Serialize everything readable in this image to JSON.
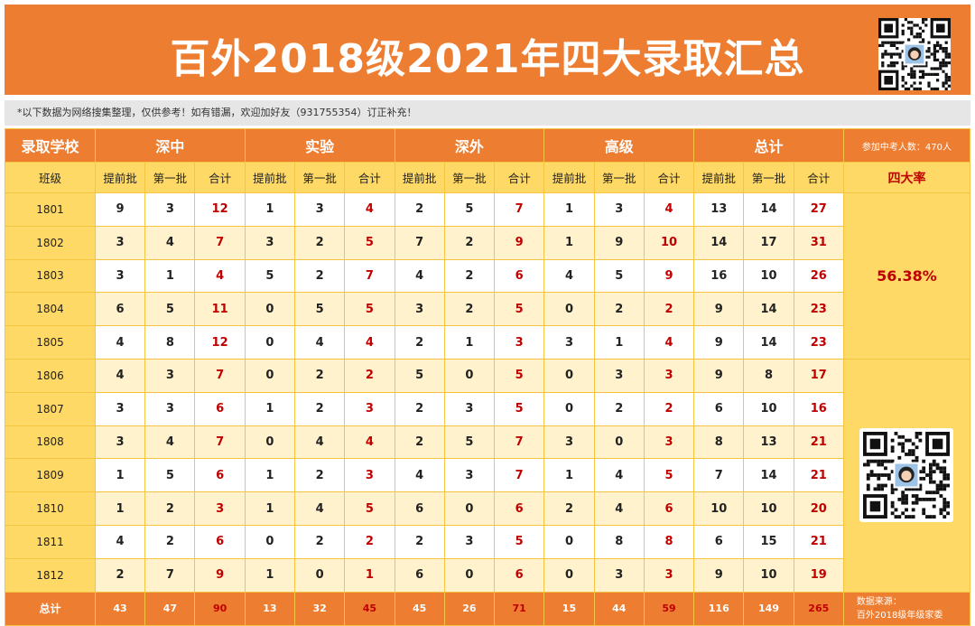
{
  "header": {
    "title": "百外2018级2021年四大录取汇总"
  },
  "notice": "*以下数据为网络搜集整理，仅供参考！如有错漏，欢迎加好友（931755354）订正补充！",
  "table": {
    "corner_label": "录取学校",
    "schools": [
      "深中",
      "实验",
      "深外",
      "高级",
      "总计"
    ],
    "participants": "参加中考人数：470人",
    "class_label": "班级",
    "sub_headers": [
      "提前批",
      "第一批",
      "合计"
    ],
    "rate_label": "四大率",
    "rate_value": "56.38%",
    "rows": [
      {
        "class": "1801",
        "values": [
          "9",
          "3",
          "12",
          "1",
          "3",
          "4",
          "2",
          "5",
          "7",
          "1",
          "3",
          "4",
          "13",
          "14",
          "27"
        ]
      },
      {
        "class": "1802",
        "values": [
          "3",
          "4",
          "7",
          "3",
          "2",
          "5",
          "7",
          "2",
          "9",
          "1",
          "9",
          "10",
          "14",
          "17",
          "31"
        ]
      },
      {
        "class": "1803",
        "values": [
          "3",
          "1",
          "4",
          "5",
          "2",
          "7",
          "4",
          "2",
          "6",
          "4",
          "5",
          "9",
          "16",
          "10",
          "26"
        ]
      },
      {
        "class": "1804",
        "values": [
          "6",
          "5",
          "11",
          "0",
          "5",
          "5",
          "3",
          "2",
          "5",
          "0",
          "2",
          "2",
          "9",
          "14",
          "23"
        ]
      },
      {
        "class": "1805",
        "values": [
          "4",
          "8",
          "12",
          "0",
          "4",
          "4",
          "2",
          "1",
          "3",
          "3",
          "1",
          "4",
          "9",
          "14",
          "23"
        ]
      },
      {
        "class": "1806",
        "values": [
          "4",
          "3",
          "7",
          "0",
          "2",
          "2",
          "5",
          "0",
          "5",
          "0",
          "3",
          "3",
          "9",
          "8",
          "17"
        ]
      },
      {
        "class": "1807",
        "values": [
          "3",
          "3",
          "6",
          "1",
          "2",
          "3",
          "2",
          "3",
          "5",
          "0",
          "2",
          "2",
          "6",
          "10",
          "16"
        ]
      },
      {
        "class": "1808",
        "values": [
          "3",
          "4",
          "7",
          "0",
          "4",
          "4",
          "2",
          "5",
          "7",
          "3",
          "0",
          "3",
          "8",
          "13",
          "21"
        ]
      },
      {
        "class": "1809",
        "values": [
          "1",
          "5",
          "6",
          "1",
          "2",
          "3",
          "4",
          "3",
          "7",
          "1",
          "4",
          "5",
          "7",
          "14",
          "21"
        ]
      },
      {
        "class": "1810",
        "values": [
          "1",
          "2",
          "3",
          "1",
          "4",
          "5",
          "6",
          "0",
          "6",
          "2",
          "4",
          "6",
          "10",
          "10",
          "20"
        ]
      },
      {
        "class": "1811",
        "values": [
          "4",
          "2",
          "6",
          "0",
          "2",
          "2",
          "2",
          "3",
          "5",
          "0",
          "8",
          "8",
          "6",
          "15",
          "21"
        ]
      },
      {
        "class": "1812",
        "values": [
          "2",
          "7",
          "9",
          "1",
          "0",
          "1",
          "6",
          "0",
          "6",
          "0",
          "3",
          "3",
          "9",
          "10",
          "19"
        ]
      }
    ],
    "footer": {
      "label": "总计",
      "values": [
        "43",
        "47",
        "90",
        "13",
        "32",
        "45",
        "45",
        "26",
        "71",
        "15",
        "44",
        "59",
        "116",
        "149",
        "265"
      ],
      "source_line1": "数据来源：",
      "source_line2": "百外2018级年级家委"
    }
  },
  "colors": {
    "orange": "#ED7D31",
    "yellow": "#FFD966",
    "light_yellow": "#FFF2CC",
    "red": "#C00000"
  },
  "icons": [
    "qr-code-icon",
    "avatar-icon"
  ]
}
